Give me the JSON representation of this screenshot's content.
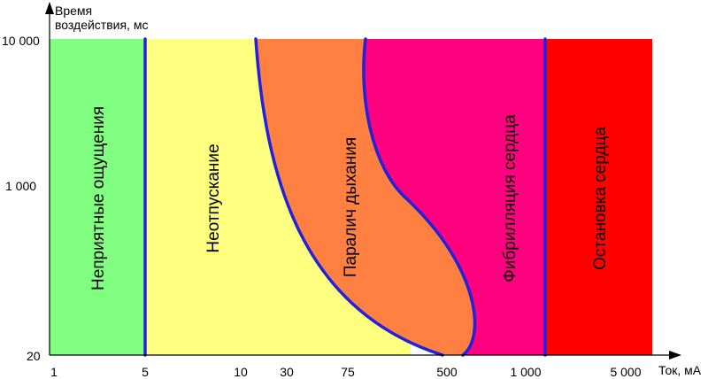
{
  "chart_data": {
    "type": "area",
    "ylabel": "Время\nвоздействия, мс",
    "xlabel": "Ток, мА",
    "x_ticks": [
      "1",
      "5",
      "10",
      "30",
      "75",
      "500",
      "1 000",
      "5 000"
    ],
    "y_ticks": [
      "10 000",
      "1 000",
      "20"
    ],
    "zones": [
      {
        "label": "Неприятные ощущения",
        "color": "#80ff80"
      },
      {
        "label": "Неотпускание",
        "color": "#ffff80"
      },
      {
        "label": "Паралич дыхания",
        "color": "#ff8040"
      },
      {
        "label": "Фибрилляция сердца",
        "color": "#ff007f"
      },
      {
        "label": "Остановка сердца",
        "color": "#ff0000"
      }
    ],
    "boundary_color": "#2222dd"
  }
}
